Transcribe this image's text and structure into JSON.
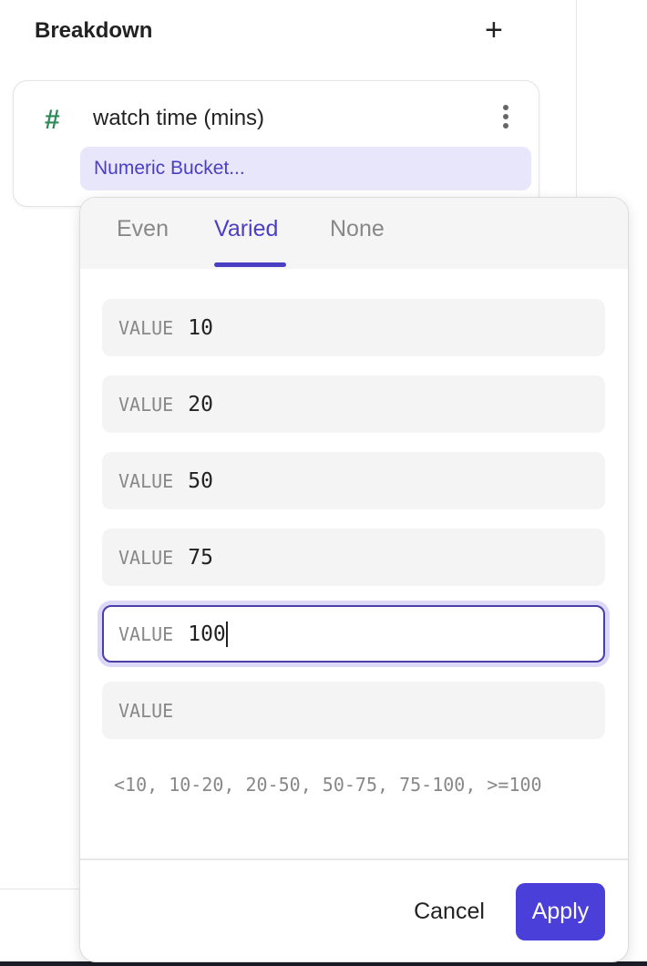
{
  "header": {
    "title": "Breakdown",
    "add_icon": "plus-icon"
  },
  "breakdown_card": {
    "type_icon": "hash-icon",
    "type_icon_color": "#2e8b57",
    "field_name": "watch time (mins)",
    "menu_icon": "kebab-icon",
    "bucket_chip": "Numeric Bucket..."
  },
  "popover": {
    "tabs": [
      {
        "label": "Even",
        "active": false
      },
      {
        "label": "Varied",
        "active": true
      },
      {
        "label": "None",
        "active": false
      }
    ],
    "inputs": [
      {
        "label": "VALUE",
        "value": "10"
      },
      {
        "label": "VALUE",
        "value": "20"
      },
      {
        "label": "VALUE",
        "value": "50"
      },
      {
        "label": "VALUE",
        "value": "75"
      },
      {
        "label": "VALUE",
        "value": "100",
        "focused": true
      },
      {
        "label": "VALUE",
        "value": ""
      }
    ],
    "ranges_preview": "<10, 10-20, 20-50, 50-75, 75-100, >=100",
    "cancel_label": "Cancel",
    "apply_label": "Apply"
  },
  "colors": {
    "accent": "#4a3fd8",
    "chip_bg": "#e8e6fb"
  }
}
